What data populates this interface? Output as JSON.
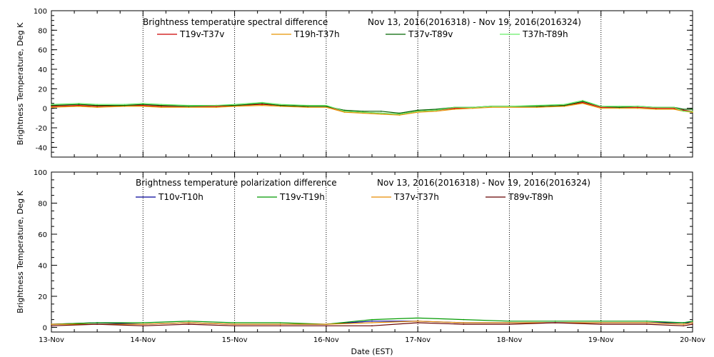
{
  "chart_data": [
    {
      "type": "line",
      "title": "Brightness temperature spectral difference",
      "date_range": "Nov 13, 2016(2016318) - Nov 19, 2016(2016324)",
      "ylabel": "Brightness Temperature, Deg K",
      "xlabel": "",
      "ylim": [
        -50,
        100
      ],
      "yticks": [
        "-40",
        "-20",
        "0",
        "20",
        "40",
        "60",
        "80",
        "100"
      ],
      "ytick_values": [
        -40,
        -20,
        0,
        20,
        40,
        60,
        80,
        100
      ],
      "xlim": [
        0,
        7
      ],
      "grid": true,
      "legend_position": "top",
      "series": [
        {
          "name": "T19v-T37v",
          "color": "#cc0000",
          "x": [
            0,
            0.3,
            0.5,
            0.8,
            1.0,
            1.2,
            1.5,
            1.8,
            2.0,
            2.3,
            2.5,
            2.8,
            3.0,
            3.2,
            3.4,
            3.6,
            3.8,
            4.0,
            4.2,
            4.4,
            4.6,
            4.8,
            5.0,
            5.3,
            5.6,
            5.8,
            6.0,
            6.2,
            6.4,
            6.6,
            6.8,
            6.9,
            7.0
          ],
          "y": [
            2,
            3,
            2,
            3,
            3,
            2,
            2,
            2,
            3,
            4,
            3,
            2,
            2,
            -3,
            -4,
            -5,
            -6,
            -3,
            -2,
            0,
            1,
            2,
            2,
            2,
            3,
            6,
            1,
            1,
            1,
            0,
            0,
            -2,
            -3
          ]
        },
        {
          "name": "T19h-T37h",
          "color": "#e69500",
          "x": [
            0,
            0.3,
            0.5,
            0.8,
            1.0,
            1.2,
            1.5,
            1.8,
            2.0,
            2.3,
            2.5,
            2.8,
            3.0,
            3.2,
            3.4,
            3.6,
            3.8,
            4.0,
            4.2,
            4.4,
            4.6,
            4.8,
            5.0,
            5.3,
            5.6,
            5.8,
            6.0,
            6.2,
            6.4,
            6.6,
            6.8,
            6.9,
            7.0
          ],
          "y": [
            1,
            2,
            1,
            2,
            2,
            1,
            1,
            1,
            2,
            3,
            2,
            1,
            1,
            -4,
            -5,
            -6,
            -7,
            -4,
            -3,
            -1,
            0,
            1,
            1,
            1,
            2,
            5,
            0,
            0,
            0,
            -1,
            -1,
            -3,
            -4
          ]
        },
        {
          "name": "T37v-T89v",
          "color": "#006400",
          "x": [
            0,
            0.3,
            0.5,
            0.8,
            1.0,
            1.2,
            1.5,
            1.8,
            2.0,
            2.3,
            2.5,
            2.8,
            3.0,
            3.2,
            3.4,
            3.6,
            3.8,
            4.0,
            4.2,
            4.4,
            4.6,
            4.8,
            5.0,
            5.3,
            5.6,
            5.8,
            6.0,
            6.2,
            6.4,
            6.6,
            6.8,
            6.9,
            7.0
          ],
          "y": [
            3,
            4,
            3,
            3,
            4,
            3,
            2,
            3,
            3,
            5,
            3,
            2,
            2,
            -2,
            -3,
            -3,
            -5,
            -2,
            -1,
            1,
            1,
            2,
            2,
            2,
            3,
            7,
            2,
            1,
            2,
            1,
            1,
            -1,
            -1
          ]
        },
        {
          "name": "T37h-T89h",
          "color": "#66ee66",
          "x": [
            0,
            0.3,
            0.5,
            0.8,
            1.0,
            1.2,
            1.5,
            1.8,
            2.0,
            2.3,
            2.5,
            2.8,
            3.0,
            3.2,
            3.4,
            3.6,
            3.8,
            4.0,
            4.2,
            4.4,
            4.6,
            4.8,
            5.0,
            5.3,
            5.6,
            5.8,
            6.0,
            6.2,
            6.4,
            6.6,
            6.8,
            6.9,
            7.0
          ],
          "y": [
            4,
            5,
            4,
            4,
            5,
            4,
            3,
            3,
            4,
            6,
            4,
            3,
            3,
            -3,
            -4,
            -5,
            -6,
            -3,
            -2,
            1,
            1,
            2,
            2,
            3,
            4,
            8,
            2,
            2,
            2,
            1,
            1,
            -3,
            -3
          ]
        }
      ]
    },
    {
      "type": "line",
      "title": "Brightness temperature polarization difference",
      "date_range": "Nov 13, 2016(2016318) - Nov 19, 2016(2016324)",
      "ylabel": "Brightness Temperature, Deg K",
      "xlabel": "Date (EST)",
      "ylim": [
        -3,
        100
      ],
      "yticks": [
        "0",
        "20",
        "40",
        "60",
        "80",
        "100"
      ],
      "ytick_values": [
        0,
        20,
        40,
        60,
        80,
        100
      ],
      "xlim": [
        0,
        7
      ],
      "grid": true,
      "legend_position": "top",
      "series": [
        {
          "name": "T10v-T10h",
          "color": "#000099",
          "x": [
            0,
            0.5,
            1.0,
            1.5,
            2.0,
            2.5,
            3.0,
            3.5,
            4.0,
            4.5,
            5.0,
            5.5,
            6.0,
            6.5,
            6.9,
            7.0
          ],
          "y": [
            2,
            3,
            2,
            3,
            2,
            2,
            2,
            4,
            4,
            3,
            3,
            3,
            3,
            3,
            3,
            3
          ]
        },
        {
          "name": "T19v-T19h",
          "color": "#009900",
          "x": [
            0,
            0.5,
            1.0,
            1.5,
            2.0,
            2.5,
            3.0,
            3.5,
            4.0,
            4.5,
            5.0,
            5.5,
            6.0,
            6.5,
            6.9,
            7.0
          ],
          "y": [
            2,
            3,
            3,
            4,
            3,
            3,
            2,
            5,
            6,
            5,
            4,
            4,
            4,
            4,
            3,
            4
          ]
        },
        {
          "name": "T37v-T37h",
          "color": "#e68a00",
          "x": [
            0,
            0.5,
            1.0,
            1.5,
            2.0,
            2.5,
            3.0,
            3.5,
            4.0,
            4.5,
            5.0,
            5.5,
            6.0,
            6.5,
            6.9,
            7.0
          ],
          "y": [
            2,
            2,
            2,
            3,
            2,
            2,
            2,
            3,
            4,
            3,
            3,
            3,
            3,
            3,
            2,
            3
          ]
        },
        {
          "name": "T89v-T89h",
          "color": "#660000",
          "x": [
            0,
            0.5,
            1.0,
            1.5,
            2.0,
            2.5,
            3.0,
            3.5,
            4.0,
            4.5,
            5.0,
            5.5,
            6.0,
            6.5,
            6.9,
            7.0
          ],
          "y": [
            1,
            2,
            1,
            2,
            1,
            1,
            1,
            1,
            3,
            2,
            2,
            3,
            2,
            2,
            1,
            2
          ]
        }
      ]
    }
  ],
  "x_axis": {
    "ticks": [
      "13-Nov",
      "14-Nov",
      "15-Nov",
      "16-Nov",
      "17-Nov",
      "18-Nov",
      "19-Nov",
      "20-Nov"
    ],
    "label": "Date (EST)"
  }
}
